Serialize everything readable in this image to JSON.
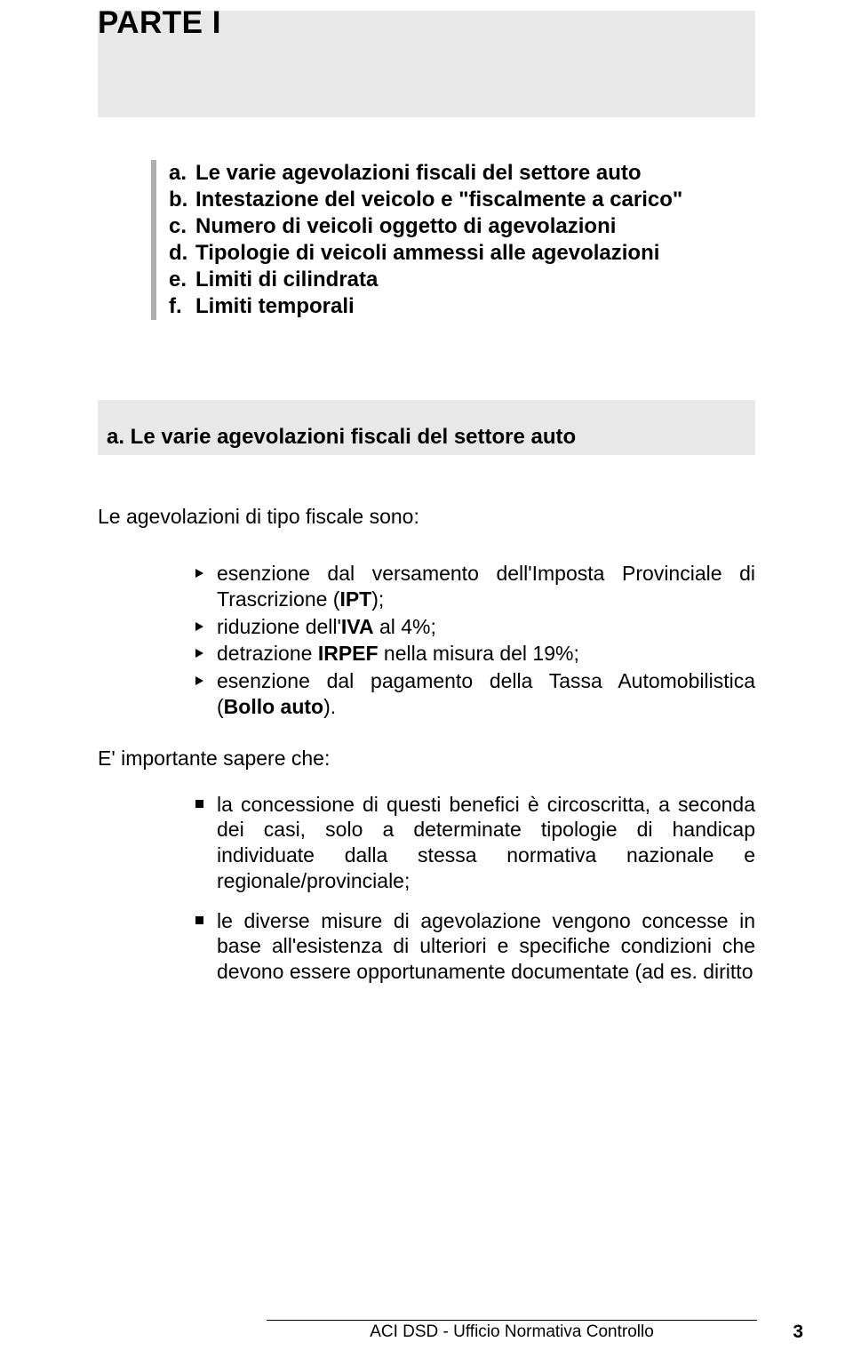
{
  "colors": {
    "band_bg": "#e8e8e8",
    "rule": "#b0b0b0",
    "text": "#000000",
    "page_bg": "#ffffff"
  },
  "title": "PARTE I",
  "toc": [
    {
      "letter": "a.",
      "text": "Le varie agevolazioni fiscali del settore auto"
    },
    {
      "letter": "b.",
      "text": "Intestazione del veicolo e \"fiscalmente a carico\""
    },
    {
      "letter": "c.",
      "text": "Numero di veicoli oggetto di agevolazioni"
    },
    {
      "letter": "d.",
      "text": "Tipologie di veicoli ammessi alle agevolazioni"
    },
    {
      "letter": "e.",
      "text": "Limiti di cilindrata"
    },
    {
      "letter": "f.",
      "text": "Limiti temporali"
    }
  ],
  "subheading": "a. Le varie agevolazioni fiscali del settore auto",
  "intro": "Le agevolazioni di tipo fiscale sono:",
  "arrow_items": [
    {
      "pre": "esenzione dal versamento dell'Imposta Provinciale di Trascrizione (",
      "bold": "IPT",
      "post": ");"
    },
    {
      "pre": "riduzione dell'",
      "bold": "IVA",
      "post": " al 4%;"
    },
    {
      "pre": "detrazione ",
      "bold": "IRPEF",
      "post": " nella misura del 19%;"
    },
    {
      "pre": "esenzione dal pagamento della Tassa Automobilistica (",
      "bold": "Bollo auto",
      "post": ")."
    }
  ],
  "important_label": "E' importante sapere che:",
  "square_items": [
    "la concessione di questi benefici è circoscritta, a seconda dei casi, solo a determinate tipologie di handicap individuate dalla stessa normativa nazionale e regionale/provinciale;",
    "le diverse misure di agevolazione vengono concesse in base all'esistenza di ulteriori e specifiche condizioni che devono essere opportunamente documentate (ad es. diritto"
  ],
  "footer_text": "ACI DSD - Ufficio Normativa Controllo",
  "page_number": "3"
}
